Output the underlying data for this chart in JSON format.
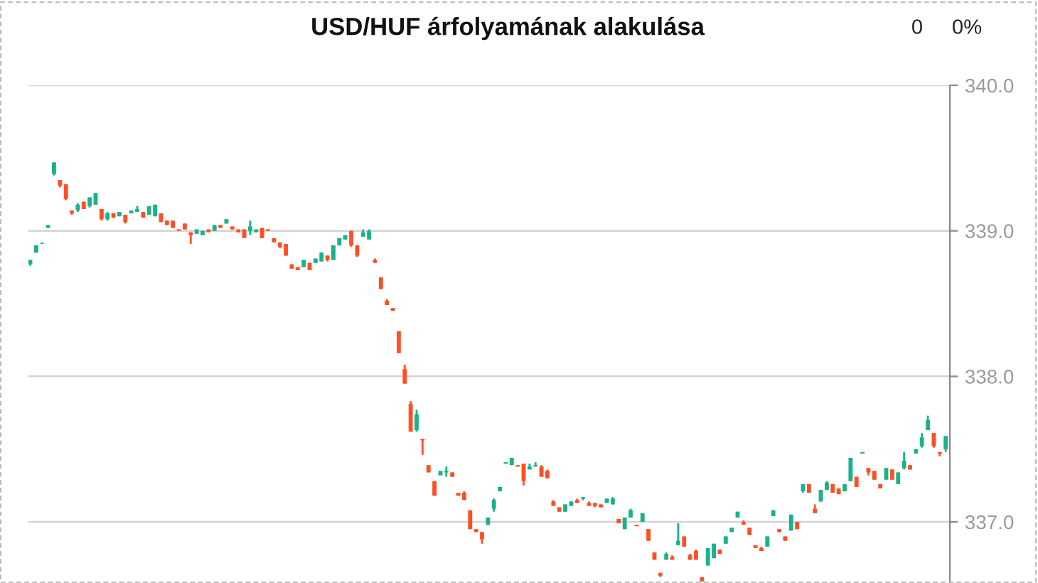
{
  "chart_data": {
    "type": "candlestick",
    "title": "USD/HUF árfolyamának alakulása",
    "annotations": [
      "0",
      "0%"
    ],
    "categories": [
      null,
      null,
      null,
      null,
      null,
      null,
      null,
      null,
      null,
      null,
      null,
      null,
      null,
      null,
      null,
      null,
      null,
      null,
      null,
      null,
      null,
      null,
      null,
      null,
      null,
      null,
      null,
      null,
      null,
      null,
      null,
      null,
      null,
      null,
      null,
      null,
      null,
      null,
      null,
      null,
      null,
      null,
      null,
      null,
      null,
      null,
      null,
      null,
      null,
      null,
      null,
      null,
      null,
      null,
      null,
      null,
      null,
      null,
      null,
      null,
      null,
      null,
      null,
      null,
      null,
      null,
      null,
      null,
      null,
      null,
      null,
      null,
      null,
      null,
      null,
      null,
      null,
      null,
      null,
      null,
      null,
      null,
      null,
      null,
      null,
      null,
      null,
      null,
      null,
      null,
      null,
      null,
      null,
      null,
      null,
      null,
      null,
      null,
      null,
      null,
      null,
      null,
      null,
      null,
      null,
      null,
      null,
      null,
      null,
      null,
      null,
      null,
      null,
      null,
      null,
      null,
      null,
      null,
      null,
      null,
      null,
      null,
      null,
      null,
      null,
      null,
      null,
      null,
      null,
      null,
      null,
      null,
      null,
      null,
      null,
      null,
      null,
      null,
      null,
      null,
      null,
      null,
      null,
      null,
      null,
      null,
      null,
      null,
      null,
      null,
      null,
      null,
      null,
      null,
      null
    ],
    "ohlc": [
      [
        338.77,
        338.8,
        338.76,
        338.8
      ],
      [
        338.85,
        338.9,
        338.85,
        338.9
      ],
      [
        338.91,
        338.92,
        338.91,
        338.91
      ],
      [
        339.02,
        339.04,
        339.02,
        339.04
      ],
      [
        339.39,
        339.47,
        339.38,
        339.47
      ],
      [
        339.35,
        339.35,
        339.3,
        339.31
      ],
      [
        339.32,
        339.32,
        339.21,
        339.22
      ],
      [
        339.14,
        339.14,
        339.11,
        339.12
      ],
      [
        339.14,
        339.19,
        339.13,
        339.18
      ],
      [
        339.2,
        339.2,
        339.15,
        339.15
      ],
      [
        339.17,
        339.23,
        339.16,
        339.23
      ],
      [
        339.18,
        339.26,
        339.18,
        339.26
      ],
      [
        339.15,
        339.15,
        339.07,
        339.08
      ],
      [
        339.08,
        339.13,
        339.07,
        339.12
      ],
      [
        339.12,
        339.12,
        339.09,
        339.09
      ],
      [
        339.1,
        339.13,
        339.1,
        339.13
      ],
      [
        339.11,
        339.11,
        339.05,
        339.06
      ],
      [
        339.12,
        339.14,
        339.12,
        339.14
      ],
      [
        339.13,
        339.17,
        339.13,
        339.15
      ],
      [
        339.13,
        339.13,
        339.09,
        339.09
      ],
      [
        339.11,
        339.17,
        339.11,
        339.17
      ],
      [
        339.1,
        339.18,
        339.1,
        339.18
      ],
      [
        339.12,
        339.12,
        339.06,
        339.06
      ],
      [
        339.07,
        339.07,
        339.04,
        339.04
      ],
      [
        339.07,
        339.07,
        339.02,
        339.02
      ],
      [
        339.01,
        339.01,
        339.0,
        339.0
      ],
      [
        339.05,
        339.05,
        339.01,
        339.01
      ],
      [
        338.99,
        338.99,
        338.91,
        338.97
      ],
      [
        338.98,
        339.01,
        338.98,
        339.01
      ],
      [
        338.97,
        339.0,
        338.97,
        339.0
      ],
      [
        339.01,
        339.01,
        338.99,
        338.99
      ],
      [
        339.0,
        339.04,
        339.0,
        339.04
      ],
      [
        339.04,
        339.04,
        339.02,
        339.02
      ],
      [
        339.05,
        339.08,
        339.05,
        339.08
      ],
      [
        339.03,
        339.03,
        339.01,
        339.01
      ],
      [
        339.01,
        339.01,
        338.99,
        338.99
      ],
      [
        339.01,
        339.01,
        338.95,
        338.95
      ],
      [
        339.0,
        339.07,
        338.97,
        339.03
      ],
      [
        338.99,
        339.01,
        338.99,
        339.01
      ],
      [
        339.02,
        339.02,
        338.95,
        338.95
      ],
      [
        339.01,
        339.01,
        339.0,
        339.0
      ],
      [
        338.95,
        338.95,
        338.92,
        338.92
      ],
      [
        338.92,
        338.92,
        338.88,
        338.89
      ],
      [
        338.91,
        338.91,
        338.83,
        338.83
      ],
      [
        338.77,
        338.77,
        338.74,
        338.74
      ],
      [
        338.75,
        338.75,
        338.73,
        338.73
      ],
      [
        338.75,
        338.8,
        338.75,
        338.8
      ],
      [
        338.78,
        338.78,
        338.73,
        338.73
      ],
      [
        338.78,
        338.81,
        338.78,
        338.81
      ],
      [
        338.79,
        338.85,
        338.79,
        338.85
      ],
      [
        338.83,
        338.83,
        338.79,
        338.8
      ],
      [
        338.8,
        338.9,
        338.8,
        338.9
      ],
      [
        338.9,
        338.95,
        338.9,
        338.95
      ],
      [
        338.94,
        338.97,
        338.94,
        338.97
      ],
      [
        339.0,
        339.0,
        338.89,
        338.9
      ],
      [
        338.9,
        338.9,
        338.82,
        338.83
      ],
      [
        338.96,
        339.01,
        338.96,
        338.99
      ],
      [
        338.94,
        339.01,
        338.94,
        339.0
      ],
      [
        338.8,
        338.81,
        338.78,
        338.78
      ],
      [
        338.68,
        338.68,
        338.6,
        338.6
      ],
      [
        338.52,
        338.53,
        338.49,
        338.49
      ],
      [
        338.47,
        338.47,
        338.45,
        338.45
      ],
      [
        338.31,
        338.31,
        338.16,
        338.16
      ],
      [
        338.05,
        338.08,
        337.95,
        337.95
      ],
      [
        337.81,
        337.83,
        337.62,
        337.62
      ],
      [
        337.63,
        337.77,
        337.62,
        337.74
      ],
      [
        337.57,
        337.57,
        337.46,
        337.56
      ],
      [
        337.39,
        337.39,
        337.34,
        337.34
      ],
      [
        337.28,
        337.28,
        337.18,
        337.18
      ],
      [
        337.32,
        337.35,
        337.32,
        337.35
      ],
      [
        337.34,
        337.38,
        337.31,
        337.35
      ],
      [
        337.34,
        337.34,
        337.31,
        337.31
      ],
      [
        337.2,
        337.2,
        337.18,
        337.18
      ],
      [
        337.2,
        337.21,
        337.15,
        337.15
      ],
      [
        337.08,
        337.08,
        336.95,
        336.95
      ],
      [
        336.95,
        336.95,
        336.93,
        336.93
      ],
      [
        336.93,
        336.93,
        336.85,
        336.88
      ],
      [
        336.98,
        337.03,
        336.98,
        337.03
      ],
      [
        337.09,
        337.16,
        337.07,
        337.15
      ],
      [
        337.21,
        337.24,
        337.21,
        337.24
      ],
      [
        337.4,
        337.41,
        337.4,
        337.41
      ],
      [
        337.39,
        337.44,
        337.39,
        337.44
      ],
      [
        337.39,
        337.39,
        337.38,
        337.38
      ],
      [
        337.4,
        337.4,
        337.25,
        337.28
      ],
      [
        337.36,
        337.4,
        337.36,
        337.38
      ],
      [
        337.38,
        337.41,
        337.38,
        337.39
      ],
      [
        337.38,
        337.39,
        337.31,
        337.31
      ],
      [
        337.35,
        337.36,
        337.3,
        337.3
      ],
      [
        337.14,
        337.15,
        337.11,
        337.11
      ],
      [
        337.1,
        337.1,
        337.07,
        337.07
      ],
      [
        337.07,
        337.12,
        337.07,
        337.12
      ],
      [
        337.11,
        337.14,
        337.11,
        337.14
      ],
      [
        337.15,
        337.16,
        337.13,
        337.13
      ],
      [
        337.16,
        337.17,
        337.15,
        337.17
      ],
      [
        337.13,
        337.14,
        337.11,
        337.11
      ],
      [
        337.13,
        337.13,
        337.1,
        337.11
      ],
      [
        337.12,
        337.12,
        337.1,
        337.1
      ],
      [
        337.13,
        337.16,
        337.13,
        337.16
      ],
      [
        337.12,
        337.17,
        337.12,
        337.16
      ],
      [
        337.02,
        337.02,
        336.99,
        336.99
      ],
      [
        336.95,
        337.03,
        336.95,
        337.03
      ],
      [
        337.03,
        337.09,
        337.03,
        337.08
      ],
      [
        336.98,
        336.98,
        336.97,
        336.97
      ],
      [
        337.0,
        337.06,
        337.0,
        337.06
      ],
      [
        336.95,
        336.95,
        336.87,
        336.87
      ],
      [
        336.79,
        336.79,
        336.74,
        336.74
      ],
      [
        336.65,
        336.65,
        336.62,
        336.63
      ],
      [
        336.74,
        336.79,
        336.74,
        336.78
      ],
      [
        336.76,
        336.77,
        336.74,
        336.74
      ],
      [
        336.84,
        336.99,
        336.84,
        336.87
      ],
      [
        336.9,
        336.9,
        336.83,
        336.83
      ],
      [
        336.77,
        336.78,
        336.74,
        336.74
      ],
      [
        336.8,
        336.81,
        336.74,
        336.74
      ],
      [
        336.62,
        336.62,
        336.59,
        336.59
      ],
      [
        336.7,
        336.82,
        336.7,
        336.82
      ],
      [
        336.75,
        336.85,
        336.75,
        336.85
      ],
      [
        336.81,
        336.81,
        336.78,
        336.78
      ],
      [
        336.85,
        336.9,
        336.85,
        336.9
      ],
      [
        336.93,
        336.96,
        336.93,
        336.96
      ],
      [
        337.03,
        337.07,
        337.03,
        337.07
      ],
      [
        337.0,
        337.01,
        336.98,
        336.98
      ],
      [
        336.96,
        336.96,
        336.91,
        336.91
      ],
      [
        336.84,
        336.84,
        336.82,
        336.82
      ],
      [
        336.82,
        336.83,
        336.8,
        336.8
      ],
      [
        336.83,
        336.9,
        336.83,
        336.9
      ],
      [
        337.04,
        337.08,
        337.04,
        337.08
      ],
      [
        336.95,
        336.95,
        336.93,
        336.93
      ],
      [
        336.9,
        336.9,
        336.87,
        336.87
      ],
      [
        336.94,
        337.05,
        336.94,
        337.05
      ],
      [
        337.0,
        337.0,
        336.95,
        336.95
      ],
      [
        337.21,
        337.26,
        337.2,
        337.26
      ],
      [
        337.26,
        337.26,
        337.2,
        337.2
      ],
      [
        337.09,
        337.12,
        337.06,
        337.06
      ],
      [
        337.14,
        337.22,
        337.14,
        337.22
      ],
      [
        337.22,
        337.28,
        337.22,
        337.27
      ],
      [
        337.26,
        337.26,
        337.2,
        337.2
      ],
      [
        337.23,
        337.23,
        337.19,
        337.19
      ],
      [
        337.21,
        337.26,
        337.21,
        337.26
      ],
      [
        337.28,
        337.44,
        337.28,
        337.44
      ],
      [
        337.31,
        337.31,
        337.24,
        337.24
      ],
      [
        337.47,
        337.48,
        337.47,
        337.48
      ],
      [
        337.37,
        337.37,
        337.32,
        337.34
      ],
      [
        337.35,
        337.35,
        337.29,
        337.29
      ],
      [
        337.26,
        337.26,
        337.23,
        337.23
      ],
      [
        337.29,
        337.37,
        337.29,
        337.37
      ],
      [
        337.36,
        337.36,
        337.29,
        337.29
      ],
      [
        337.26,
        337.34,
        337.26,
        337.34
      ],
      [
        337.37,
        337.48,
        337.36,
        337.42
      ],
      [
        337.39,
        337.39,
        337.36,
        337.36
      ],
      [
        337.47,
        337.5,
        337.47,
        337.5
      ],
      [
        337.52,
        337.61,
        337.51,
        337.58
      ],
      [
        337.63,
        337.73,
        337.63,
        337.7
      ],
      [
        337.61,
        337.61,
        337.51,
        337.52
      ],
      [
        337.48,
        337.48,
        337.45,
        337.47
      ],
      [
        337.5,
        337.59,
        337.48,
        337.59
      ]
    ],
    "colors": [
      "#19b28a",
      "#19b28a",
      "#19b28a",
      "#19b28a",
      "#19b28a",
      "#fc5024",
      "#fc5024",
      "#fc5024",
      "#19b28a",
      "#fc5024",
      "#19b28a",
      "#19b28a",
      "#fc5024",
      "#19b28a",
      "#fc5024",
      "#19b28a",
      "#fc5024",
      "#19b28a",
      "#19b28a",
      "#fc5024",
      "#19b28a",
      "#19b28a",
      "#fc5024",
      "#fc5024",
      "#fc5024",
      "#fc5024",
      "#fc5024",
      "#fc5024",
      "#19b28a",
      "#19b28a",
      "#fc5024",
      "#19b28a",
      "#fc5024",
      "#19b28a",
      "#fc5024",
      "#fc5024",
      "#fc5024",
      "#19b28a",
      "#19b28a",
      "#fc5024",
      "#fc5024",
      "#fc5024",
      "#fc5024",
      "#fc5024",
      "#fc5024",
      "#fc5024",
      "#19b28a",
      "#fc5024",
      "#19b28a",
      "#19b28a",
      "#fc5024",
      "#19b28a",
      "#19b28a",
      "#19b28a",
      "#fc5024",
      "#fc5024",
      "#19b28a",
      "#19b28a",
      "#fc5024",
      "#fc5024",
      "#fc5024",
      "#fc5024",
      "#fc5024",
      "#fc5024",
      "#fc5024",
      "#19b28a",
      "#fc5024",
      "#fc5024",
      "#fc5024",
      "#19b28a",
      "#19b28a",
      "#fc5024",
      "#fc5024",
      "#fc5024",
      "#fc5024",
      "#fc5024",
      "#fc5024",
      "#19b28a",
      "#19b28a",
      "#19b28a",
      "#19b28a",
      "#19b28a",
      "#fc5024",
      "#fc5024",
      "#19b28a",
      "#19b28a",
      "#fc5024",
      "#fc5024",
      "#fc5024",
      "#fc5024",
      "#19b28a",
      "#19b28a",
      "#fc5024",
      "#19b28a",
      "#fc5024",
      "#fc5024",
      "#fc5024",
      "#19b28a",
      "#19b28a",
      "#fc5024",
      "#19b28a",
      "#19b28a",
      "#fc5024",
      "#19b28a",
      "#fc5024",
      "#fc5024",
      "#fc5024",
      "#19b28a",
      "#fc5024",
      "#19b28a",
      "#fc5024",
      "#fc5024",
      "#fc5024",
      "#fc5024",
      "#19b28a",
      "#19b28a",
      "#fc5024",
      "#19b28a",
      "#19b28a",
      "#19b28a",
      "#fc5024",
      "#fc5024",
      "#fc5024",
      "#fc5024",
      "#19b28a",
      "#19b28a",
      "#fc5024",
      "#fc5024",
      "#19b28a",
      "#fc5024",
      "#19b28a",
      "#fc5024",
      "#fc5024",
      "#19b28a",
      "#19b28a",
      "#fc5024",
      "#fc5024",
      "#19b28a",
      "#19b28a",
      "#fc5024",
      "#19b28a",
      "#fc5024",
      "#fc5024",
      "#fc5024",
      "#19b28a",
      "#fc5024",
      "#19b28a",
      "#19b28a",
      "#fc5024",
      "#19b28a",
      "#19b28a",
      "#19b28a",
      "#fc5024",
      "#fc5024",
      "#19b28a"
    ],
    "ylim": [
      336.58,
      340.0
    ],
    "yticks": [
      {
        "value": 337,
        "label": "337.0"
      },
      {
        "value": 338,
        "label": "338.0"
      },
      {
        "value": 339,
        "label": "339.0"
      },
      {
        "value": 340,
        "label": "340.0"
      }
    ],
    "grid": "y",
    "tick_labels": "y"
  }
}
